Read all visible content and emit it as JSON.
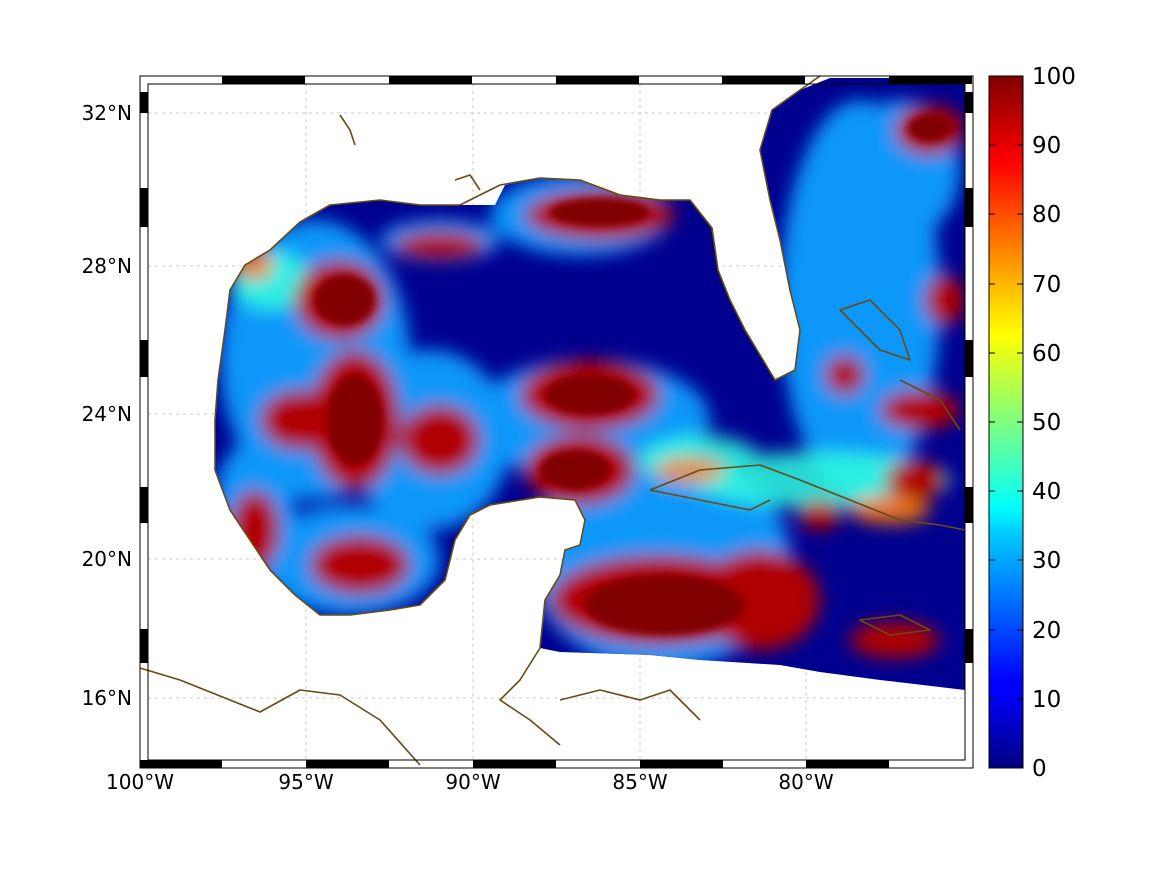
{
  "map": {
    "region": "Gulf of Mexico and Caribbean",
    "lon_range": [
      -100,
      -75
    ],
    "lat_range": [
      14.2,
      33
    ],
    "x_ticks": [
      "100°W",
      "95°W",
      "90°W",
      "85°W",
      "80°W"
    ],
    "y_ticks": [
      "32°N",
      "28°N",
      "24°N",
      "20°N",
      "16°N"
    ],
    "grid": true,
    "colormap": "jet",
    "coastline_color": "#6b4a12",
    "land_color": "#ffffff",
    "frame_style": "alternating black-white border"
  },
  "colorbar": {
    "range": [
      0,
      100
    ],
    "labels": [
      "100",
      "90",
      "80",
      "70",
      "60",
      "50",
      "40",
      "30",
      "20",
      "10",
      "0"
    ],
    "placement": "right"
  }
}
